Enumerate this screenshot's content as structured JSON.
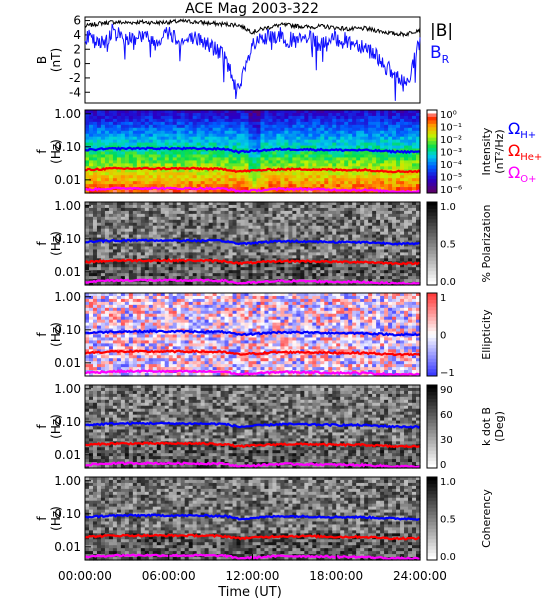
{
  "title": "ACE Mag 2003-322",
  "colors": {
    "total_field": "#000000",
    "radial_field": "#1010ff",
    "h_line": "#0000ff",
    "he_line": "#ff0000",
    "o_line": "#ff00ff"
  },
  "chart_data": [
    {
      "type": "line",
      "panel": "magnetic-field",
      "ylabel": "B",
      "yunit": "(nT)",
      "ylim": [
        -5.5,
        6.5
      ],
      "yticks": [
        6,
        4,
        2,
        0,
        -2,
        -4
      ],
      "legend": [
        {
          "label": "|B|",
          "color": "#000000"
        },
        {
          "label": "B",
          "sub": "R",
          "color": "#1010ff"
        }
      ],
      "x_hours": [
        0,
        1,
        2,
        3,
        4,
        5,
        6,
        7,
        8,
        9,
        10,
        11,
        12,
        13,
        14,
        15,
        16,
        17,
        18,
        19,
        20,
        21,
        22,
        23,
        24
      ],
      "series": [
        {
          "name": "|B|",
          "color": "#000000",
          "values": [
            5.2,
            5.6,
            5.8,
            5.7,
            5.8,
            5.7,
            5.8,
            5.9,
            5.8,
            5.6,
            5.5,
            5.4,
            4.4,
            5.0,
            5.4,
            5.3,
            5.1,
            5.2,
            5.0,
            4.8,
            4.9,
            4.6,
            4.2,
            4.1,
            4.8
          ]
        },
        {
          "name": "B_R",
          "color": "#1010ff",
          "values": [
            4.0,
            2.5,
            4.5,
            3.5,
            4.0,
            3.0,
            4.5,
            3.0,
            3.5,
            2.5,
            1.0,
            -4.0,
            2.5,
            3.5,
            4.0,
            3.0,
            3.5,
            2.5,
            3.5,
            3.0,
            2.5,
            1.0,
            -1.5,
            -3.0,
            3.0
          ]
        }
      ]
    },
    {
      "type": "heatmap",
      "panel": "intensity",
      "ylabel": "f",
      "yunit": "(Hz)",
      "yticks": [
        "1.00",
        "0.10",
        "0.01"
      ],
      "colorbar": {
        "label": "Intensity",
        "unit": "(nT²/Hz)",
        "scale": "rainbow",
        "ticks": [
          "10⁰",
          "10⁻¹",
          "10⁻²",
          "10⁻³",
          "10⁻⁴",
          "10⁻⁵",
          "10⁻⁶"
        ]
      },
      "legend": [
        {
          "label": "Ω",
          "sub": "H+",
          "color": "#0000ff"
        },
        {
          "label": "Ω",
          "sub": "He+",
          "color": "#ff0000"
        },
        {
          "label": "Ω",
          "sub": "O+",
          "color": "#ff00ff"
        }
      ]
    },
    {
      "type": "heatmap",
      "panel": "polarization",
      "ylabel": "f",
      "yunit": "(Hz)",
      "yticks": [
        "1.00",
        "0.10",
        "0.01"
      ],
      "colorbar": {
        "label": "% Polarization",
        "unit": "",
        "scale": "gray",
        "ticks": [
          "1.0",
          "0.5",
          "0.0"
        ]
      }
    },
    {
      "type": "heatmap",
      "panel": "ellipticity",
      "ylabel": "f",
      "yunit": "(Hz)",
      "yticks": [
        "1.00",
        "0.10",
        "0.01"
      ],
      "colorbar": {
        "label": "Ellipticity",
        "unit": "",
        "scale": "bluered",
        "ticks": [
          "1",
          "0",
          "−1"
        ]
      }
    },
    {
      "type": "heatmap",
      "panel": "wave-normal-angle",
      "ylabel": "f",
      "yunit": "(Hz)",
      "yticks": [
        "1.00",
        "0.10",
        "0.01"
      ],
      "colorbar": {
        "label": "k dot B",
        "unit": "(Deg)",
        "scale": "gray",
        "ticks": [
          "90",
          "60",
          "30",
          "0"
        ]
      }
    },
    {
      "type": "heatmap",
      "panel": "coherency",
      "ylabel": "f",
      "yunit": "(Hz)",
      "yticks": [
        "1.00",
        "0.10",
        "0.01"
      ],
      "colorbar": {
        "label": "Coherency",
        "unit": "",
        "scale": "gray",
        "ticks": [
          "1.0",
          "0.5",
          "0.0"
        ]
      }
    }
  ],
  "cyclotron_lines_hz": {
    "x_hours": [
      0,
      2,
      4,
      6,
      8,
      10,
      11,
      12,
      14,
      16,
      18,
      20,
      22,
      24
    ],
    "H+": [
      0.08,
      0.088,
      0.09,
      0.089,
      0.088,
      0.086,
      0.07,
      0.075,
      0.085,
      0.083,
      0.08,
      0.079,
      0.072,
      0.07
    ],
    "He+": [
      0.02,
      0.022,
      0.022,
      0.022,
      0.022,
      0.021,
      0.018,
      0.019,
      0.021,
      0.021,
      0.02,
      0.02,
      0.018,
      0.018
    ],
    "O+": [
      0.005,
      0.0055,
      0.0056,
      0.0055,
      0.0055,
      0.0054,
      0.0045,
      0.0047,
      0.0053,
      0.0052,
      0.005,
      0.0049,
      0.0045,
      0.0044
    ]
  },
  "time_axis": {
    "label": "Time (UT)",
    "ticks": [
      "00:00:00",
      "06:00:00",
      "12:00:00",
      "18:00:00",
      "24:00:00"
    ]
  }
}
